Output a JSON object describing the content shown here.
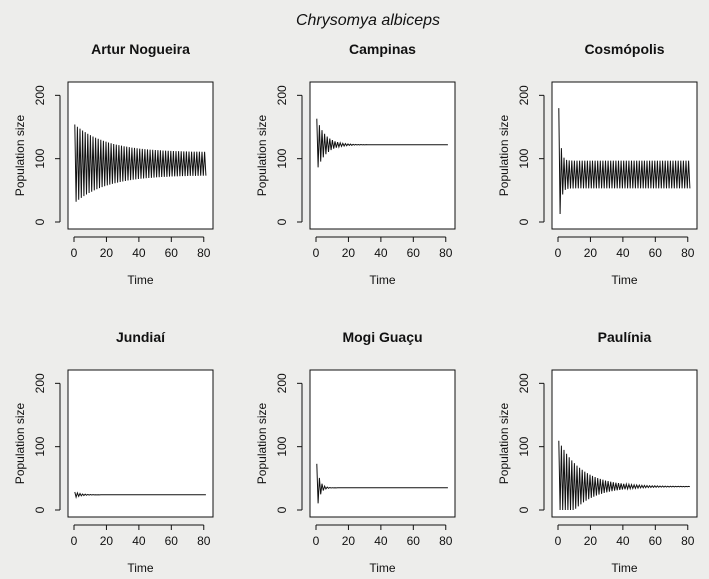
{
  "figure": {
    "title": "Chrysomya albiceps",
    "background": "#ededeb",
    "line_color": "#111111"
  },
  "chart_data": [
    {
      "type": "line",
      "title": "Artur Nogueira",
      "xlabel": "Time",
      "ylabel": "Population size",
      "xlim": [
        0,
        82
      ],
      "ylim": [
        0,
        210
      ],
      "xticks": [
        0,
        20,
        40,
        60,
        80
      ],
      "yticks": [
        0,
        100,
        200
      ],
      "dynamics": {
        "equilibrium": 92,
        "initial_amplitude": 45,
        "damping": 0.05,
        "sustained_amplitude": 18,
        "period": 1.6
      }
    },
    {
      "type": "line",
      "title": "Campinas",
      "xlabel": "Time",
      "ylabel": "Population size",
      "xlim": [
        0,
        82
      ],
      "ylim": [
        0,
        210
      ],
      "xticks": [
        0,
        20,
        40,
        60,
        80
      ],
      "yticks": [
        0,
        100,
        200
      ],
      "dynamics": {
        "equilibrium": 122,
        "initial_amplitude": 45,
        "damping": 0.18,
        "sustained_amplitude": 0,
        "period": 1.6
      }
    },
    {
      "type": "line",
      "title": "Cosmópolis",
      "xlabel": "Time",
      "ylabel": "Population size",
      "xlim": [
        0,
        82
      ],
      "ylim": [
        0,
        210
      ],
      "xticks": [
        0,
        20,
        40,
        60,
        80
      ],
      "yticks": [
        0,
        100,
        200
      ],
      "dynamics": {
        "equilibrium": 75,
        "initial_amplitude": 130,
        "damping": 0.9,
        "sustained_amplitude": 22,
        "period": 1.6
      }
    },
    {
      "type": "line",
      "title": "Jundiaí",
      "xlabel": "Time",
      "ylabel": "Population size",
      "xlim": [
        0,
        82
      ],
      "ylim": [
        0,
        210
      ],
      "xticks": [
        0,
        20,
        40,
        60,
        80
      ],
      "yticks": [
        0,
        100,
        200
      ],
      "dynamics": {
        "equilibrium": 24,
        "initial_amplitude": 5,
        "damping": 0.25,
        "sustained_amplitude": 0,
        "period": 1.6
      }
    },
    {
      "type": "line",
      "title": "Mogi Guaçu",
      "xlabel": "Time",
      "ylabel": "Population size",
      "xlim": [
        0,
        82
      ],
      "ylim": [
        0,
        210
      ],
      "xticks": [
        0,
        20,
        40,
        60,
        80
      ],
      "yticks": [
        0,
        100,
        200
      ],
      "dynamics": {
        "equilibrium": 35,
        "initial_amplitude": 50,
        "damping": 0.55,
        "sustained_amplitude": 0,
        "period": 1.6
      }
    },
    {
      "type": "line",
      "title": "Paulínia",
      "xlabel": "Time",
      "ylabel": "Population size",
      "xlim": [
        0,
        82
      ],
      "ylim": [
        0,
        210
      ],
      "xticks": [
        0,
        20,
        40,
        60,
        80
      ],
      "yticks": [
        0,
        100,
        200
      ],
      "dynamics": {
        "equilibrium": 37,
        "initial_amplitude": 75,
        "damping": 0.07,
        "sustained_amplitude": 0,
        "period": 1.6
      }
    }
  ]
}
